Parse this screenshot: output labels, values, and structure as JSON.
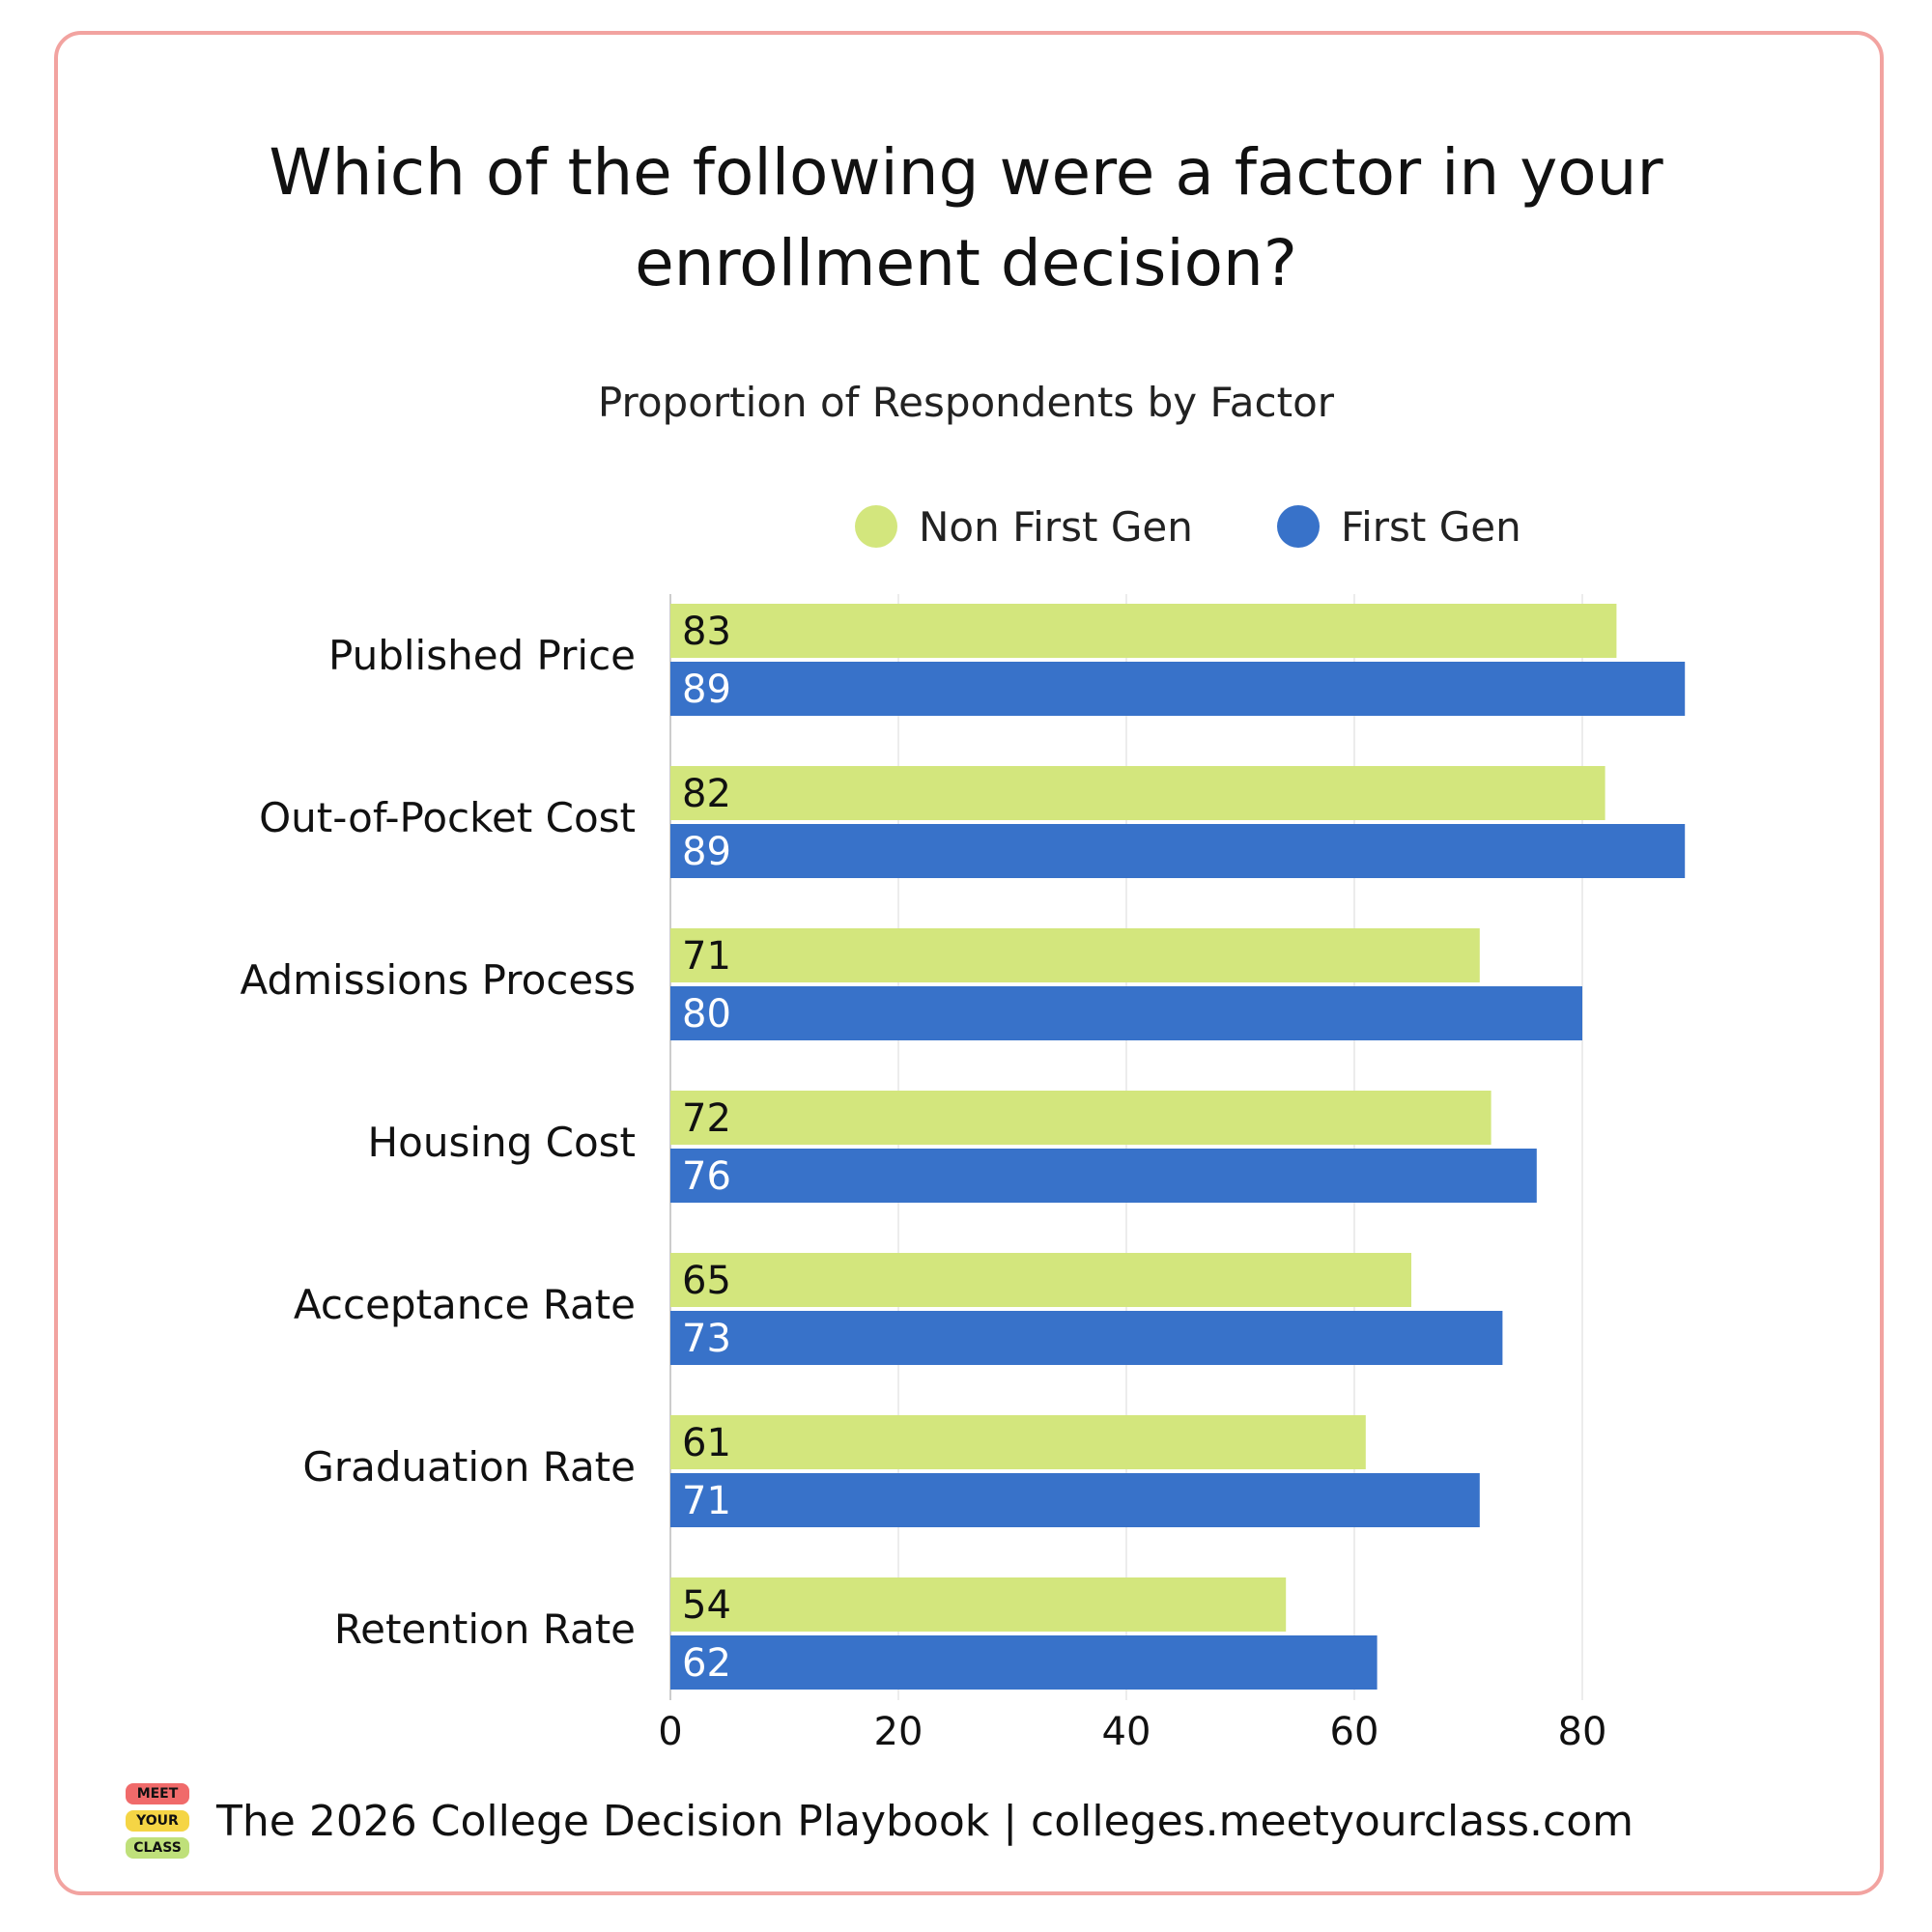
{
  "title_line1": "Which of the following were a factor in your",
  "title_line2": "enrollment decision?",
  "subtitle": "Proportion of Respondents by Factor",
  "footer": {
    "text": "The 2026 College Decision Playbook | colleges.meetyourclass.com",
    "logo_lines": [
      "MEET",
      "YOUR",
      "CLASS"
    ]
  },
  "colors": {
    "non_first_gen": "#d3e67d",
    "first_gen": "#3872c9",
    "border": "#f2a3a0"
  },
  "chart_data": {
    "type": "bar",
    "orientation": "horizontal",
    "categories": [
      "Published Price",
      "Out-of-Pocket Cost",
      "Admissions Process",
      "Housing Cost",
      "Acceptance Rate",
      "Graduation Rate",
      "Retention Rate"
    ],
    "series": [
      {
        "name": "Non First Gen",
        "values": [
          83,
          82,
          71,
          72,
          65,
          61,
          54
        ]
      },
      {
        "name": "First Gen",
        "values": [
          89,
          89,
          80,
          76,
          73,
          71,
          62
        ]
      }
    ],
    "xticks": [
      "0",
      "20",
      "40",
      "60",
      "80"
    ],
    "xlim": [
      0,
      100
    ],
    "grid": true,
    "legend_position": "top"
  }
}
